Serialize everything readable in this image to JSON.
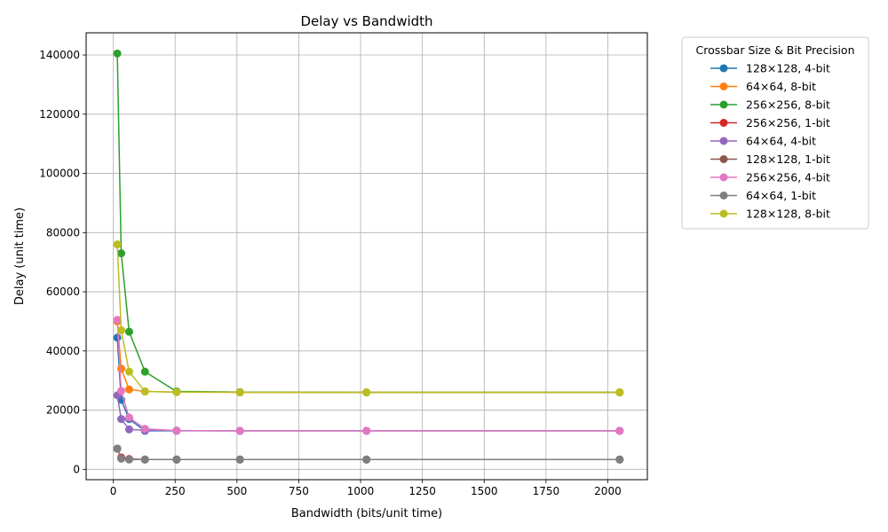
{
  "chart_data": {
    "type": "line",
    "title": "Delay vs Bandwidth",
    "xlabel": "Bandwidth (bits/unit time)",
    "ylabel": "Delay (unit time)",
    "xlim": [
      -110,
      2160
    ],
    "ylim": [
      -3500,
      147500
    ],
    "xticks": [
      0,
      250,
      500,
      750,
      1000,
      1250,
      1500,
      1750,
      2000
    ],
    "yticks": [
      0,
      20000,
      40000,
      60000,
      80000,
      100000,
      120000,
      140000
    ],
    "grid": true,
    "legend_title": "Crossbar Size & Bit Precision",
    "legend_placement": "outside-right",
    "x": [
      16,
      32,
      64,
      128,
      256,
      512,
      1024,
      2048
    ],
    "series": [
      {
        "name": "128×128, 4-bit",
        "color": "#1f77b4",
        "values": [
          44500,
          23500,
          17000,
          13000,
          13000,
          13000,
          13000,
          13000
        ]
      },
      {
        "name": "64×64, 8-bit",
        "color": "#ff7f0e",
        "values": [
          50000,
          34000,
          27000,
          26300,
          26100,
          26000,
          26000,
          26000
        ]
      },
      {
        "name": "256×256, 8-bit",
        "color": "#2ca02c",
        "values": [
          140500,
          73000,
          46500,
          33000,
          26300,
          26100,
          26000,
          26000
        ]
      },
      {
        "name": "256×256, 1-bit",
        "color": "#d62728",
        "values": [
          7000,
          4000,
          3500,
          3300,
          3300,
          3300,
          3300,
          3300
        ]
      },
      {
        "name": "64×64, 4-bit",
        "color": "#9467bd",
        "values": [
          25000,
          17000,
          13500,
          13200,
          13100,
          13000,
          13000,
          13000
        ]
      },
      {
        "name": "128×128, 1-bit",
        "color": "#8c564b",
        "values": [
          7000,
          3700,
          3400,
          3300,
          3300,
          3300,
          3300,
          3300
        ]
      },
      {
        "name": "256×256, 4-bit",
        "color": "#e377c2",
        "values": [
          50500,
          26500,
          17500,
          13700,
          13100,
          13000,
          13000,
          13000
        ]
      },
      {
        "name": "64×64, 1-bit",
        "color": "#7f7f7f",
        "values": [
          7000,
          3600,
          3300,
          3300,
          3300,
          3300,
          3300,
          3300
        ]
      },
      {
        "name": "128×128, 8-bit",
        "color": "#bcbd22",
        "values": [
          76000,
          47000,
          33000,
          26300,
          26100,
          26000,
          26000,
          26000
        ]
      }
    ]
  }
}
